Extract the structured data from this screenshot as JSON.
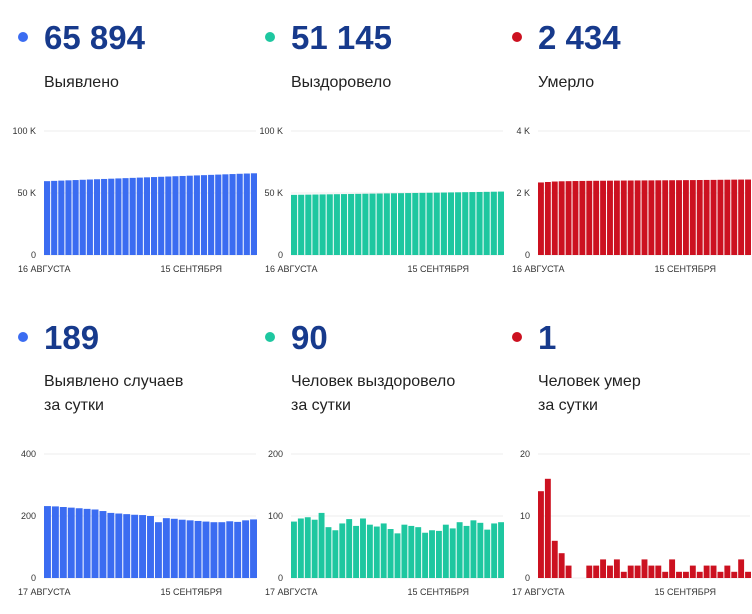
{
  "cards": [
    {
      "value": "65 894",
      "label1": "Выявлено",
      "label2": "",
      "color": "#3b6cf1",
      "chart_data": {
        "type": "bar",
        "color": "#3b6cf1",
        "ylim": [
          0,
          100000
        ],
        "yticks": [
          0,
          50000,
          100000
        ],
        "ytick_labels": [
          "0",
          "50 K",
          "100 K"
        ],
        "x_start_label": "16 АВГУСТА",
        "x_end_label": "15 СЕНТЯБРЯ",
        "values": [
          59550,
          59780,
          60000,
          60220,
          60440,
          60660,
          60880,
          61100,
          61320,
          61540,
          61760,
          61980,
          62200,
          62420,
          62640,
          62860,
          63080,
          63300,
          63520,
          63740,
          63960,
          64180,
          64400,
          64620,
          64840,
          65060,
          65280,
          65500,
          65700,
          65894
        ]
      }
    },
    {
      "value": "51 145",
      "label1": "Выздоровело",
      "label2": "",
      "color": "#1ec7a0",
      "chart_data": {
        "type": "bar",
        "color": "#1ec7a0",
        "ylim": [
          0,
          100000
        ],
        "yticks": [
          0,
          50000,
          100000
        ],
        "ytick_labels": [
          "0",
          "50 K",
          "100 K"
        ],
        "x_start_label": "16 АВГУСТА",
        "x_end_label": "15 СЕНТЯБРЯ",
        "values": [
          48500,
          48590,
          48680,
          48770,
          48860,
          48950,
          49040,
          49130,
          49220,
          49310,
          49400,
          49490,
          49580,
          49670,
          49760,
          49850,
          49940,
          50030,
          50120,
          50210,
          50300,
          50390,
          50480,
          50570,
          50660,
          50750,
          50840,
          50930,
          51040,
          51145
        ]
      }
    },
    {
      "value": "2 434",
      "label1": "Умерло",
      "label2": "",
      "color": "#cc1120",
      "chart_data": {
        "type": "bar",
        "color": "#cc1120",
        "ylim": [
          0,
          4000
        ],
        "yticks": [
          0,
          2000,
          4000
        ],
        "ytick_labels": [
          "0",
          "2 K",
          "4 K"
        ],
        "x_start_label": "16 АВГУСТА",
        "x_end_label": "15 СЕНТЯБРЯ",
        "values": [
          2340,
          2355,
          2370,
          2378,
          2382,
          2386,
          2389,
          2392,
          2394,
          2396,
          2398,
          2400,
          2402,
          2403,
          2405,
          2406,
          2407,
          2409,
          2410,
          2412,
          2413,
          2415,
          2417,
          2419,
          2421,
          2423,
          2426,
          2428,
          2431,
          2433,
          2434
        ]
      }
    },
    {
      "value": "189",
      "label1": "Выявлено случаев",
      "label2": "за сутки",
      "color": "#3b6cf1",
      "chart_data": {
        "type": "bar",
        "color": "#3b6cf1",
        "ylim": [
          0,
          400
        ],
        "yticks": [
          0,
          200,
          400
        ],
        "ytick_labels": [
          "0",
          "200",
          "400"
        ],
        "x_start_label": "17 АВГУСТА",
        "x_end_label": "15 СЕНТЯБРЯ",
        "values": [
          232,
          231,
          229,
          227,
          225,
          223,
          221,
          216,
          210,
          208,
          206,
          204,
          203,
          200,
          180,
          193,
          191,
          188,
          186,
          184,
          182,
          180,
          180,
          183,
          181,
          186,
          189
        ]
      }
    },
    {
      "value": "90",
      "label1": "Человек выздоровело",
      "label2": "за сутки",
      "color": "#1ec7a0",
      "chart_data": {
        "type": "bar",
        "color": "#1ec7a0",
        "ylim": [
          0,
          200
        ],
        "yticks": [
          0,
          100,
          200
        ],
        "ytick_labels": [
          "0",
          "100",
          "200"
        ],
        "x_start_label": "17 АВГУСТА",
        "x_end_label": "15 СЕНТЯБРЯ",
        "values": [
          91,
          96,
          98,
          94,
          105,
          82,
          77,
          88,
          95,
          84,
          96,
          86,
          83,
          88,
          79,
          72,
          86,
          84,
          82,
          73,
          77,
          76,
          86,
          80,
          90,
          84,
          93,
          89,
          78,
          88,
          90
        ]
      }
    },
    {
      "value": "1",
      "label1": "Человек умер",
      "label2": "за сутки",
      "color": "#cc1120",
      "chart_data": {
        "type": "bar",
        "color": "#cc1120",
        "ylim": [
          0,
          20
        ],
        "yticks": [
          0,
          10,
          20
        ],
        "ytick_labels": [
          "0",
          "10",
          "20"
        ],
        "x_start_label": "17 АВГУСТА",
        "x_end_label": "15 СЕНТЯБРЯ",
        "values": [
          14,
          16,
          6,
          4,
          2,
          0,
          0,
          2,
          2,
          3,
          2,
          3,
          1,
          2,
          2,
          3,
          2,
          2,
          1,
          3,
          1,
          1,
          2,
          1,
          2,
          2,
          1,
          2,
          1,
          3,
          1
        ]
      }
    }
  ]
}
